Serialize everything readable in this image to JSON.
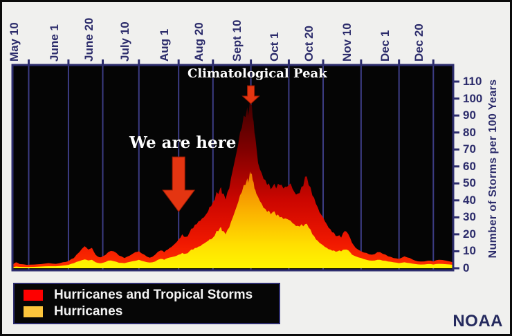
{
  "frame": {
    "noaa_label": "NOAA",
    "background": "#f0f0ee"
  },
  "colors": {
    "axis_text": "#2c2c6b",
    "gridline": "#3d3d85",
    "plot_border": "#2d2d6e",
    "plot_background": "#050505",
    "arrow": "#e43511"
  },
  "legend": {
    "position": "bottom-left"
  },
  "chart_data": {
    "type": "area",
    "title": "",
    "xlabel": "",
    "ylabel": "Number of Storms per 100 Years",
    "x_domain_days": [
      0,
      244
    ],
    "ylim": [
      0,
      115
    ],
    "grid": "vertical-only",
    "annotations": [
      {
        "text": "Climatological Peak",
        "arrow": "down",
        "at_day": 132,
        "size": "small"
      },
      {
        "text": "We are here",
        "arrow": "down",
        "at_day": 92,
        "size": "large"
      }
    ],
    "x_axis": {
      "position": "top",
      "ticks": [
        {
          "day": 9,
          "label": "May 10"
        },
        {
          "day": 31,
          "label": "June 1"
        },
        {
          "day": 50,
          "label": "June 20"
        },
        {
          "day": 70,
          "label": "July 10"
        },
        {
          "day": 92,
          "label": "Aug 1"
        },
        {
          "day": 111,
          "label": "Aug 20"
        },
        {
          "day": 132,
          "label": "Sept 10"
        },
        {
          "day": 153,
          "label": "Oct 1"
        },
        {
          "day": 172,
          "label": "Oct 20"
        },
        {
          "day": 193,
          "label": "Nov 10"
        },
        {
          "day": 214,
          "label": "Dec 1"
        },
        {
          "day": 233,
          "label": "Dec 20"
        }
      ]
    },
    "y_axis": {
      "position": "right",
      "label": "Number of Storms per 100 Years",
      "ticks": [
        0,
        10,
        20,
        30,
        40,
        50,
        60,
        70,
        80,
        90,
        100,
        110
      ]
    },
    "days": [
      0,
      2,
      4,
      8,
      12,
      16,
      20,
      24,
      28,
      31,
      34,
      37,
      40,
      42,
      44,
      46,
      48,
      50,
      53,
      56,
      59,
      62,
      65,
      68,
      70,
      73,
      76,
      79,
      82,
      84,
      86,
      88,
      90,
      92,
      94,
      96,
      98,
      100,
      102,
      104,
      106,
      108,
      109,
      111,
      113,
      115,
      116,
      118,
      120,
      122,
      124,
      126,
      128,
      130,
      131,
      132,
      133,
      134,
      135,
      136,
      138,
      140,
      142,
      144,
      146,
      148,
      150,
      152,
      154,
      156,
      158,
      160,
      162,
      164,
      166,
      168,
      170,
      172,
      174,
      176,
      178,
      180,
      182,
      184,
      186,
      188,
      190,
      193,
      196,
      199,
      202,
      205,
      208,
      211,
      214,
      217,
      220,
      223,
      226,
      230,
      233,
      236,
      240,
      244
    ],
    "series": [
      {
        "name": "Hurricanes and Tropical Storms",
        "legend_color": "#fe0000",
        "gradient": [
          {
            "offset": 0,
            "color": "#3c0000"
          },
          {
            "offset": 0.3,
            "color": "#800000"
          },
          {
            "offset": 0.6,
            "color": "#cc0600"
          },
          {
            "offset": 0.85,
            "color": "#f01800"
          },
          {
            "offset": 1,
            "color": "#ff3000"
          }
        ],
        "values": [
          2,
          3.5,
          2.5,
          2,
          2.2,
          2.5,
          3,
          2.6,
          3.6,
          4.2,
          6,
          9.5,
          13,
          11,
          12,
          8,
          6.5,
          7,
          9.5,
          10,
          7.5,
          6,
          7.5,
          9.5,
          10,
          8,
          6.2,
          8,
          10.5,
          9.5,
          11,
          12.5,
          14.5,
          17,
          20,
          18.5,
          21,
          23.5,
          26,
          28,
          30,
          33,
          36,
          39,
          45,
          47,
          44,
          40.5,
          47,
          58,
          68,
          80,
          90,
          95,
          94,
          96.5,
          89,
          80,
          72,
          62,
          56,
          52,
          50,
          48,
          47,
          49,
          47,
          48,
          50,
          45,
          44,
          48,
          54,
          49,
          43,
          38,
          33,
          30,
          26,
          23,
          21,
          19,
          18,
          22,
          20,
          15,
          12,
          10,
          9,
          8,
          9.5,
          8.5,
          7,
          6,
          5.5,
          7,
          6,
          4.5,
          4,
          4.5,
          4,
          5,
          4.5,
          3.5
        ]
      },
      {
        "name": "Hurricanes",
        "legend_color": "#fdc53c",
        "gradient": [
          {
            "offset": 0,
            "color": "#ee7c00"
          },
          {
            "offset": 0.4,
            "color": "#fbb100"
          },
          {
            "offset": 0.75,
            "color": "#ffdf00"
          },
          {
            "offset": 1,
            "color": "#fff600"
          }
        ],
        "values": [
          0.5,
          1,
          0.8,
          0.7,
          0.8,
          1,
          1.2,
          1.2,
          1.6,
          2,
          3,
          4.2,
          5.2,
          4.6,
          5,
          3.6,
          3,
          3.2,
          4.5,
          4.2,
          3.2,
          3,
          3.8,
          4.4,
          5,
          4,
          3.4,
          4,
          5.5,
          5,
          6,
          6.5,
          7,
          8,
          9,
          8.6,
          10,
          11,
          12,
          13,
          14.5,
          16,
          17,
          18,
          22,
          24,
          22,
          20,
          24,
          30,
          36,
          43,
          49,
          53,
          53,
          55.5,
          52,
          47,
          44,
          42,
          38,
          35,
          34,
          33,
          31,
          30,
          29,
          29,
          28,
          26,
          25,
          26,
          26,
          24,
          20,
          17,
          15,
          13.5,
          12,
          11,
          10.5,
          10,
          10,
          11,
          10.5,
          8,
          7,
          6,
          5,
          4.5,
          5,
          4.5,
          4,
          3.5,
          3,
          3.5,
          3,
          2.5,
          2.2,
          2.5,
          2.2,
          2.6,
          2.4,
          2
        ]
      }
    ]
  }
}
